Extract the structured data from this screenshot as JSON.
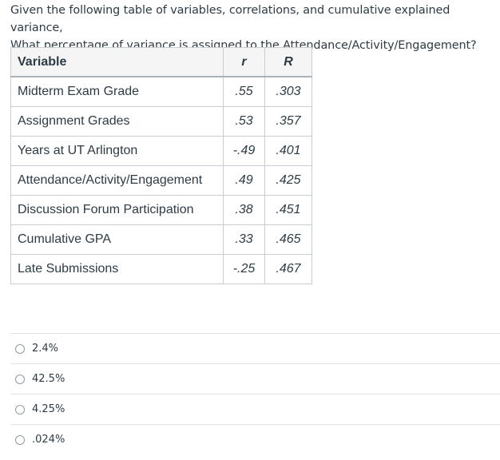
{
  "question": {
    "line1": "Given the following table of variables, correlations, and cumulative explained variance,",
    "line2": "What percentage of variance is assigned to the Attendance/Activity/Engagement?"
  },
  "table": {
    "headers": {
      "variable": "Variable",
      "r": "r",
      "R": "R"
    },
    "rows": [
      {
        "variable": "Midterm Exam Grade",
        "r": ".55",
        "R": ".303"
      },
      {
        "variable": "Assignment Grades",
        "r": ".53",
        "R": ".357"
      },
      {
        "variable": "Years at UT Arlington",
        "r": "-.49",
        "R": ".401"
      },
      {
        "variable": "Attendance/Activity/Engagement",
        "r": ".49",
        "R": ".425"
      },
      {
        "variable": "Discussion Forum Participation",
        "r": ".38",
        "R": ".451"
      },
      {
        "variable": "Cumulative GPA",
        "r": ".33",
        "R": ".465"
      },
      {
        "variable": "Late Submissions",
        "r": "-.25",
        "R": ".467"
      }
    ]
  },
  "answers": [
    {
      "label": "2.4%"
    },
    {
      "label": "42.5%"
    },
    {
      "label": "4.25%"
    },
    {
      "label": ".024%"
    }
  ]
}
